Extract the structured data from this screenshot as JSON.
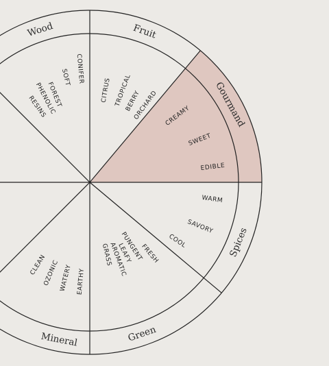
{
  "colors": {
    "background": "#eceae6",
    "highlight_fill": "#dfc7c0",
    "line": "#222222",
    "text": "#2b2b2b"
  },
  "wheel": {
    "highlighted_category": "Gourmand",
    "categories": [
      {
        "name": "Fruit",
        "notes": [
          "CITRUS",
          "TROPICAL",
          "BERRY",
          "ORCHARD"
        ]
      },
      {
        "name": "Gourmand",
        "notes": [
          "CREAMY",
          "SWEET",
          "EDIBLE"
        ]
      },
      {
        "name": "Spices",
        "notes": [
          "WARM",
          "SAVORY",
          "COOL"
        ]
      },
      {
        "name": "Green",
        "notes": [
          "FRESH",
          "PUNGENT",
          "LEAFY",
          "AROMATIC",
          "GRASS"
        ]
      },
      {
        "name": "Mineral",
        "notes": [
          "EARTHY",
          "WATERY",
          "OZONIC",
          "CLEAN"
        ]
      },
      {
        "name": "Wood",
        "notes": [
          "CONIFER",
          "SOFT",
          "FOREST",
          "PHENOLIC",
          "RESINS"
        ]
      }
    ]
  }
}
